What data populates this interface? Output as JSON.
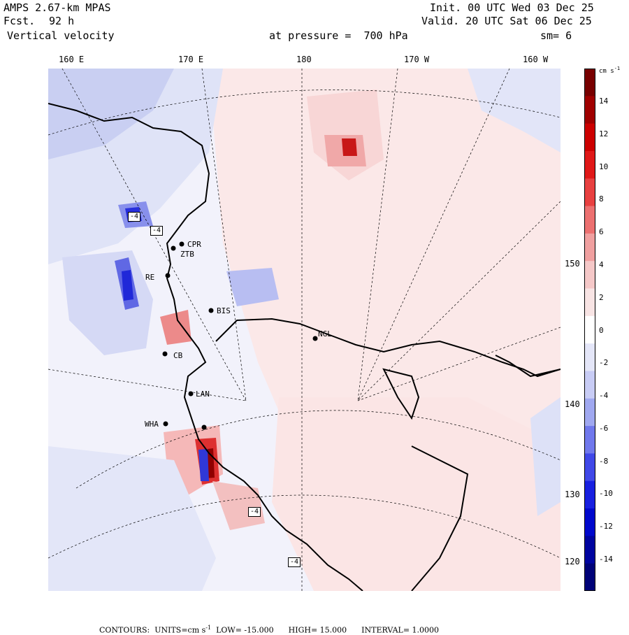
{
  "header": {
    "model": "AMPS 2.67-km MPAS",
    "forecast_label": "Fcst.",
    "forecast_hours": "92 h",
    "field": "Vertical velocity",
    "init": "Init. 00 UTC Wed 03 Dec 25",
    "valid": "Valid. 20 UTC Sat 06 Dec 25",
    "pressure": "at pressure =  700 hPa",
    "smoothing": "sm= 6"
  },
  "longitude_labels": [
    "160 E",
    "170 E",
    "180",
    "170 W",
    "160 W"
  ],
  "latitude_labels": [
    "150 W",
    "140 W",
    "130 W",
    "120 W"
  ],
  "colorbar": {
    "unit": "cm s",
    "unit_exp": "-1",
    "levels": [
      14,
      12,
      10,
      8,
      6,
      4,
      2,
      0,
      -2,
      -4,
      -6,
      -8,
      -10,
      -12,
      -14
    ]
  },
  "stations": [
    "CPR",
    "ZTB",
    "RE",
    "BIS",
    "NGL",
    "CB",
    "LAN",
    "WHA"
  ],
  "box_labels": [
    "-4",
    "-4",
    "-4",
    "-4"
  ],
  "footer": {
    "contours": "CONTOURS:",
    "units_label": "UNITS=cm s",
    "units_exp": "-1",
    "low": "LOW= -15.000",
    "high": "HIGH= 15.000",
    "interval": "INTERVAL= 1.0000"
  },
  "colors": {
    "positive": [
      "#f8e4e4",
      "#f5c8c8",
      "#f0a0a0",
      "#ec7070",
      "#e84040",
      "#e01818",
      "#cc0000",
      "#a00000",
      "#780000"
    ],
    "negative": [
      "#e4e6f8",
      "#c8ccf5",
      "#a0a8f0",
      "#7078ec",
      "#4048e8",
      "#1820e0",
      "#0008cc",
      "#0004a0",
      "#000278"
    ]
  }
}
